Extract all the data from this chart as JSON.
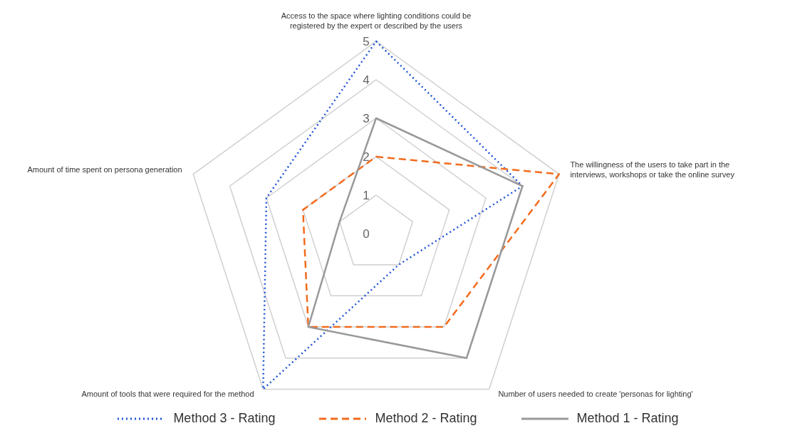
{
  "chart_data": {
    "type": "radar",
    "categories": [
      "Access to the space where lighting conditions could be registered by the expert or described by the users",
      "The willingness of the users to take part in the interviews, workshops or take the online survey",
      "Number of users needed to create 'personas for lighting'",
      "Amount of tools that were required for the method",
      "Amount of time spent on persona generation"
    ],
    "series": [
      {
        "name": "Method 3 - Rating",
        "color": "#2255d4",
        "line_style": "dotted",
        "values": [
          5,
          4,
          1,
          5,
          3
        ]
      },
      {
        "name": "Method 2 - Rating",
        "color": "#f26b1d",
        "line_style": "dashed",
        "values": [
          2,
          5,
          3,
          3,
          2
        ]
      },
      {
        "name": "Method 1 - Rating",
        "color": "#999999",
        "line_style": "solid",
        "values": [
          3,
          4,
          4,
          3,
          1
        ]
      }
    ],
    "ylim": [
      0,
      5
    ],
    "yticks": [
      0,
      1,
      2,
      3,
      4,
      5
    ],
    "grid": true,
    "legend": "bottom",
    "marker": "none"
  }
}
